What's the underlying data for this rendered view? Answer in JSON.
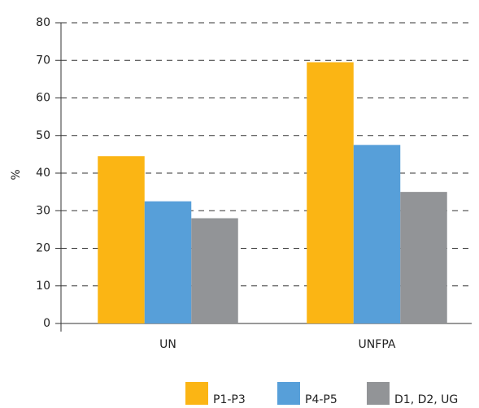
{
  "chart_data": {
    "type": "bar",
    "y_label": "%",
    "categories": [
      "UN",
      "UNFPA"
    ],
    "series": [
      {
        "name": "P1-P3",
        "color": "#fbb514",
        "values": [
          44.5,
          69.5
        ]
      },
      {
        "name": "P4-P5",
        "color": "#579fd9",
        "values": [
          32.5,
          47.5
        ]
      },
      {
        "name": "D1, D2, UG",
        "color": "#929497",
        "values": [
          28,
          35
        ]
      }
    ],
    "ylim": [
      0,
      80
    ],
    "yticks": [
      0,
      10,
      20,
      30,
      40,
      50,
      60,
      70,
      80
    ],
    "grid": true,
    "legend": "bottom"
  }
}
